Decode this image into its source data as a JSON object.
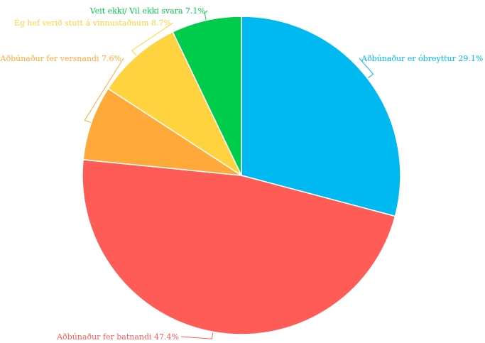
{
  "chart_data": {
    "type": "pie",
    "slices": [
      {
        "label": "Aðbúnaður er óbreyttur",
        "value": 29.1,
        "value_label": "29.1%",
        "color": "#00B9F1"
      },
      {
        "label": "Aðbúnaður fer batnandi",
        "value": 47.4,
        "value_label": "47.4%",
        "color": "#FF5C58"
      },
      {
        "label": "Aðbúnaður fer versnandi",
        "value": 7.6,
        "value_label": "7.6%",
        "color": "#FFA93A"
      },
      {
        "label": "Ég hef verið stutt á vinnustaðnum",
        "value": 8.7,
        "value_label": "8.7%",
        "color": "#FFD23F"
      },
      {
        "label": "Veit ekki/ Vil ekki svara",
        "value": 7.1,
        "value_label": "7.1%",
        "color": "#00CC4C"
      }
    ],
    "start_angle": "12 o'clock",
    "direction": "clockwise",
    "legend": "none",
    "labels": "outside with leader lines"
  }
}
